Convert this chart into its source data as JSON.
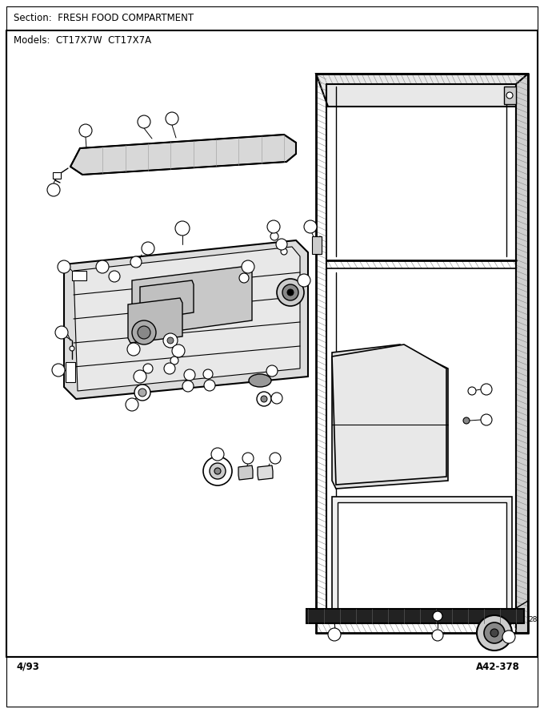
{
  "section_text": "Section:  FRESH FOOD COMPARTMENT",
  "models_text": "Models:  CT17X7W  CT17X7A",
  "footer_left": "4/93",
  "footer_right": "A42-378",
  "bg_color": "#ffffff",
  "border_color": "#000000",
  "text_color": "#000000",
  "line_color": "#000000",
  "fig_width": 6.8,
  "fig_height": 8.9,
  "dpi": 100
}
